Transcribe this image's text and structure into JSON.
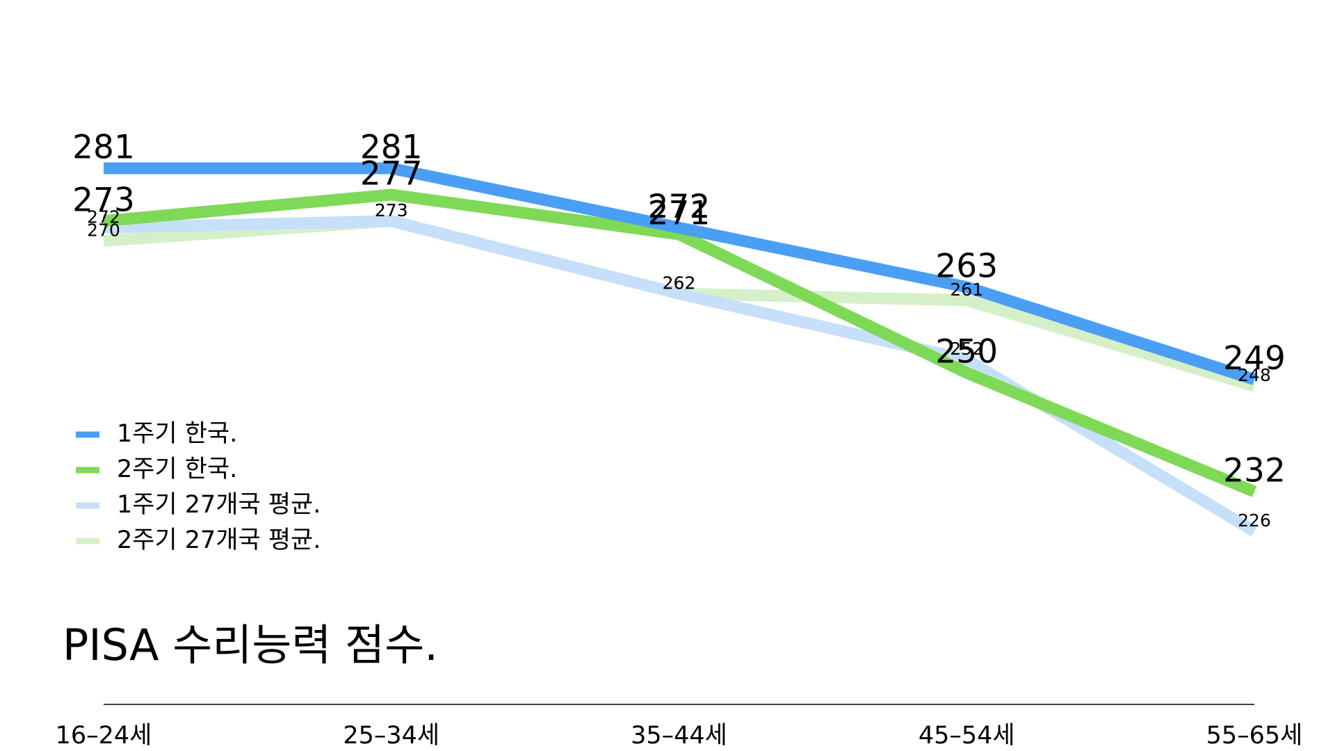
{
  "chart_data": {
    "type": "line",
    "title": "PISA 수리능력 점수.",
    "categories": [
      "16–24세",
      "25–34세",
      "35–44세",
      "45–54세",
      "55–65세"
    ],
    "series": [
      {
        "name": "1주기 한국.",
        "color": "#4a9ff5",
        "values": [
          281,
          281,
          272,
          263,
          249
        ]
      },
      {
        "name": "2주기 한국.",
        "color": "#7ed957",
        "values": [
          273,
          277,
          271,
          250,
          232
        ]
      },
      {
        "name": "1주기 27개국 평균.",
        "color": "#c6e0fa",
        "values": [
          272,
          273,
          262,
          252,
          226
        ]
      },
      {
        "name": "2주기 27개국 평균.",
        "color": "#d5f0c8",
        "values": [
          270,
          273,
          262,
          261,
          248
        ]
      }
    ]
  }
}
